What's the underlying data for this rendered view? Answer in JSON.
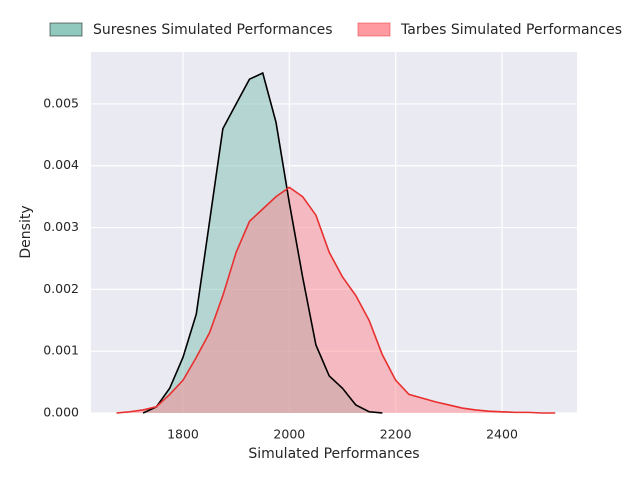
{
  "chart_data": {
    "type": "area",
    "xlabel": "Simulated Performances",
    "ylabel": "Density",
    "x": [
      1675,
      1700,
      1725,
      1750,
      1775,
      1800,
      1825,
      1850,
      1875,
      1900,
      1925,
      1950,
      1975,
      2000,
      2025,
      2050,
      2075,
      2100,
      2125,
      2150,
      2175,
      2200,
      2225,
      2250,
      2275,
      2300,
      2325,
      2350,
      2375,
      2400,
      2425,
      2450,
      2475,
      2500
    ],
    "series": [
      {
        "name": "Suresnes Simulated Performances",
        "color": "#000000",
        "fill": "#7fbfb3",
        "values": [
          null,
          null,
          0,
          0.0001,
          0.0004,
          0.0009,
          0.0016,
          0.0031,
          0.0046,
          0.005,
          0.0054,
          0.0055,
          0.0047,
          0.0034,
          0.0022,
          0.0011,
          0.0006,
          0.0004,
          0.00013,
          2e-05,
          0,
          null,
          null,
          null,
          null,
          null,
          null,
          null,
          null,
          null,
          null,
          null,
          null,
          null
        ]
      },
      {
        "name": "Tarbes Simulated Performances",
        "color": "#e8302f",
        "fill": "#ff8a8f",
        "values": [
          0,
          2e-05,
          5e-05,
          0.0001,
          0.0003,
          0.00053,
          0.0009,
          0.0013,
          0.0019,
          0.0026,
          0.0031,
          0.0033,
          0.0035,
          0.00365,
          0.0035,
          0.0032,
          0.0026,
          0.0022,
          0.0019,
          0.0015,
          0.00094,
          0.00053,
          0.0003,
          0.00024,
          0.00018,
          0.00013,
          8e-05,
          5e-05,
          3e-05,
          2e-05,
          1e-05,
          1e-05,
          0,
          0
        ]
      }
    ],
    "xlim": [
      1627,
      2541
    ],
    "ylim": [
      0,
      0.00584
    ],
    "xticks": [
      1800,
      2000,
      2200,
      2400
    ],
    "yticks": [
      {
        "value": 0,
        "label": "0.000"
      },
      {
        "value": 0.001,
        "label": "0.001"
      },
      {
        "value": 0.002,
        "label": "0.002"
      },
      {
        "value": 0.003,
        "label": "0.003"
      },
      {
        "value": 0.004,
        "label": "0.004"
      },
      {
        "value": 0.005,
        "label": "0.005"
      }
    ],
    "grid": true,
    "legend": "top"
  }
}
